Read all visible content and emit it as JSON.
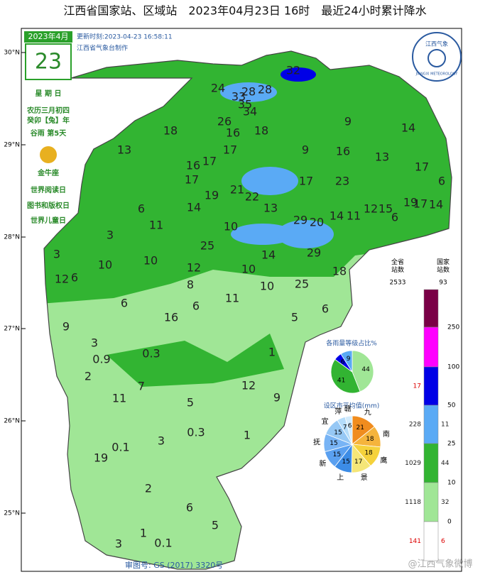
{
  "title": "江西省国家站、区域站　2023年04月23日 16时　最近24小时累计降水",
  "calendar": {
    "month": "2023年4月",
    "day": "23",
    "weekday": "星 期 日",
    "lunar": "农历三月初四",
    "year": "癸卯【兔】年",
    "term": "谷雨 第5天",
    "zodiac": "金牛座",
    "events": [
      "世界阅读日",
      "图书和版权日",
      "世界儿童日"
    ]
  },
  "update": "更新时刻:2023-04-23 16:58:11",
  "maker": "江西省气象台制作",
  "logo": {
    "top": "江西气象",
    "bottom": "JIANGXI METEOROLOGY"
  },
  "latitudes": [
    "30°N",
    "29°N",
    "28°N",
    "27°N",
    "26°N",
    "25°N"
  ],
  "stations": [
    32,
    24,
    33,
    28,
    28,
    35,
    34,
    26,
    16,
    18,
    18,
    9,
    14,
    13,
    17,
    9,
    16,
    13,
    17,
    16,
    17,
    17,
    21,
    22,
    17,
    23,
    6,
    19,
    14,
    6,
    11,
    13,
    29,
    20,
    14,
    11,
    12,
    15,
    19,
    17,
    14,
    6,
    3,
    10,
    25,
    14,
    29,
    3,
    10,
    10,
    12,
    10,
    18,
    12,
    6,
    8,
    25,
    6,
    6,
    11,
    10,
    16,
    5,
    6,
    9,
    3,
    0.9,
    0.3,
    1,
    2,
    7,
    12,
    9,
    11,
    5,
    0.3,
    3,
    1,
    0.1,
    19,
    2,
    6,
    5,
    1,
    3,
    0.1
  ],
  "legend": {
    "province_header": "全省\n站数",
    "province_total": "2533",
    "national_header": "国家\n站数",
    "national_total": "93",
    "thresholds": [
      250,
      100,
      50,
      25,
      10,
      0
    ],
    "colors": [
      "#7a0046",
      "#ff00ff",
      "#0000e6",
      "#5aaaf5",
      "#32b432",
      "#a0e696",
      "#ffffff"
    ],
    "province_counts": [
      null,
      null,
      17,
      228,
      1029,
      1118,
      141
    ],
    "national_counts": [
      null,
      null,
      null,
      11,
      44,
      32,
      6
    ]
  },
  "pie_levels": {
    "type": "pie",
    "title": "各雨量等级占比%",
    "values": [
      44,
      41,
      6,
      9
    ],
    "colors": [
      "#a0e696",
      "#32b432",
      "#0000e6",
      "#5aaaf5"
    ]
  },
  "pie_cities": {
    "type": "pie",
    "title": "设区市平均值(mm)",
    "categories": [
      "九",
      "南",
      "鹰",
      "景",
      "上",
      "新",
      "抚",
      "宜",
      "萍",
      "赣"
    ],
    "values": [
      21,
      18,
      18,
      17,
      15,
      15,
      15,
      15,
      7,
      6
    ],
    "colors": [
      "#f08c1e",
      "#f5b43c",
      "#f5d23c",
      "#f5e678",
      "#3c8ce6",
      "#5aa0f0",
      "#78b4f5",
      "#96c8f5",
      "#b4dcfa",
      "#d2ebfc"
    ]
  },
  "footer": "审图号: GS (2017) 3320号",
  "watermark": "@江西气象微博"
}
